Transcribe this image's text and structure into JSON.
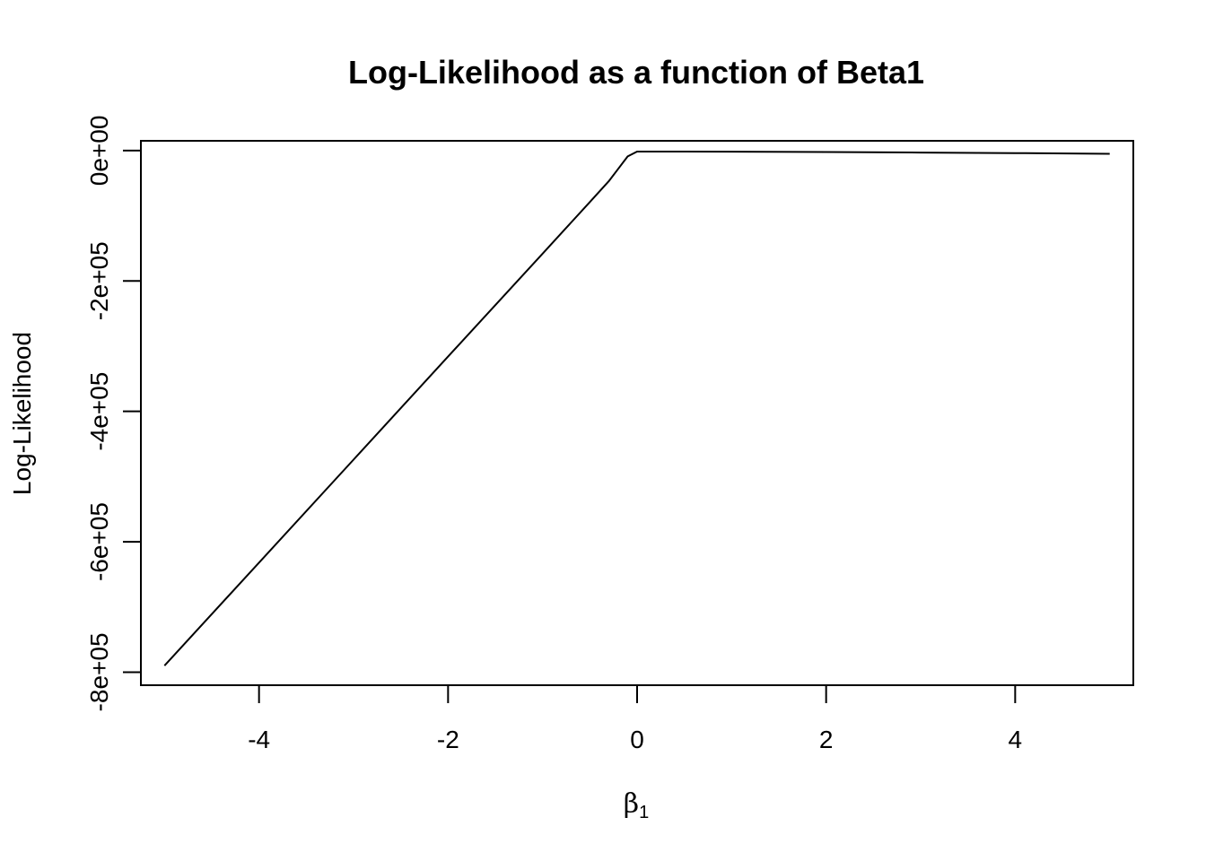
{
  "chart_data": {
    "type": "line",
    "title": "Log-Likelihood as a function of Beta1",
    "xlabel": {
      "symbol": "β",
      "subscript": "1"
    },
    "ylabel": "Log-Likelihood",
    "xlim": [
      -5.25,
      5.25
    ],
    "ylim": [
      -820000,
      15000
    ],
    "xticks": [
      -4,
      -2,
      0,
      2,
      4
    ],
    "xtick_labels": [
      "-4",
      "-2",
      "0",
      "2",
      "4"
    ],
    "yticks": [
      0,
      -200000,
      -400000,
      -600000,
      -800000
    ],
    "ytick_labels": [
      "0e+00",
      "-2e+05",
      "-4e+05",
      "-6e+05",
      "-8e+05"
    ],
    "grid": false,
    "series": [
      {
        "color": "#000000",
        "x": [
          -5.0,
          -4.0,
          -3.0,
          -2.0,
          -1.0,
          -0.5,
          -0.3,
          -0.2,
          -0.1,
          0.0,
          1.0,
          2.0,
          3.0,
          4.0,
          5.0
        ],
        "y": [
          -790000,
          -632000,
          -474000,
          -316000,
          -158000,
          -79000,
          -47000,
          -28000,
          -9000,
          -1500,
          -1600,
          -2200,
          -3000,
          -3900,
          -5000
        ]
      }
    ]
  }
}
